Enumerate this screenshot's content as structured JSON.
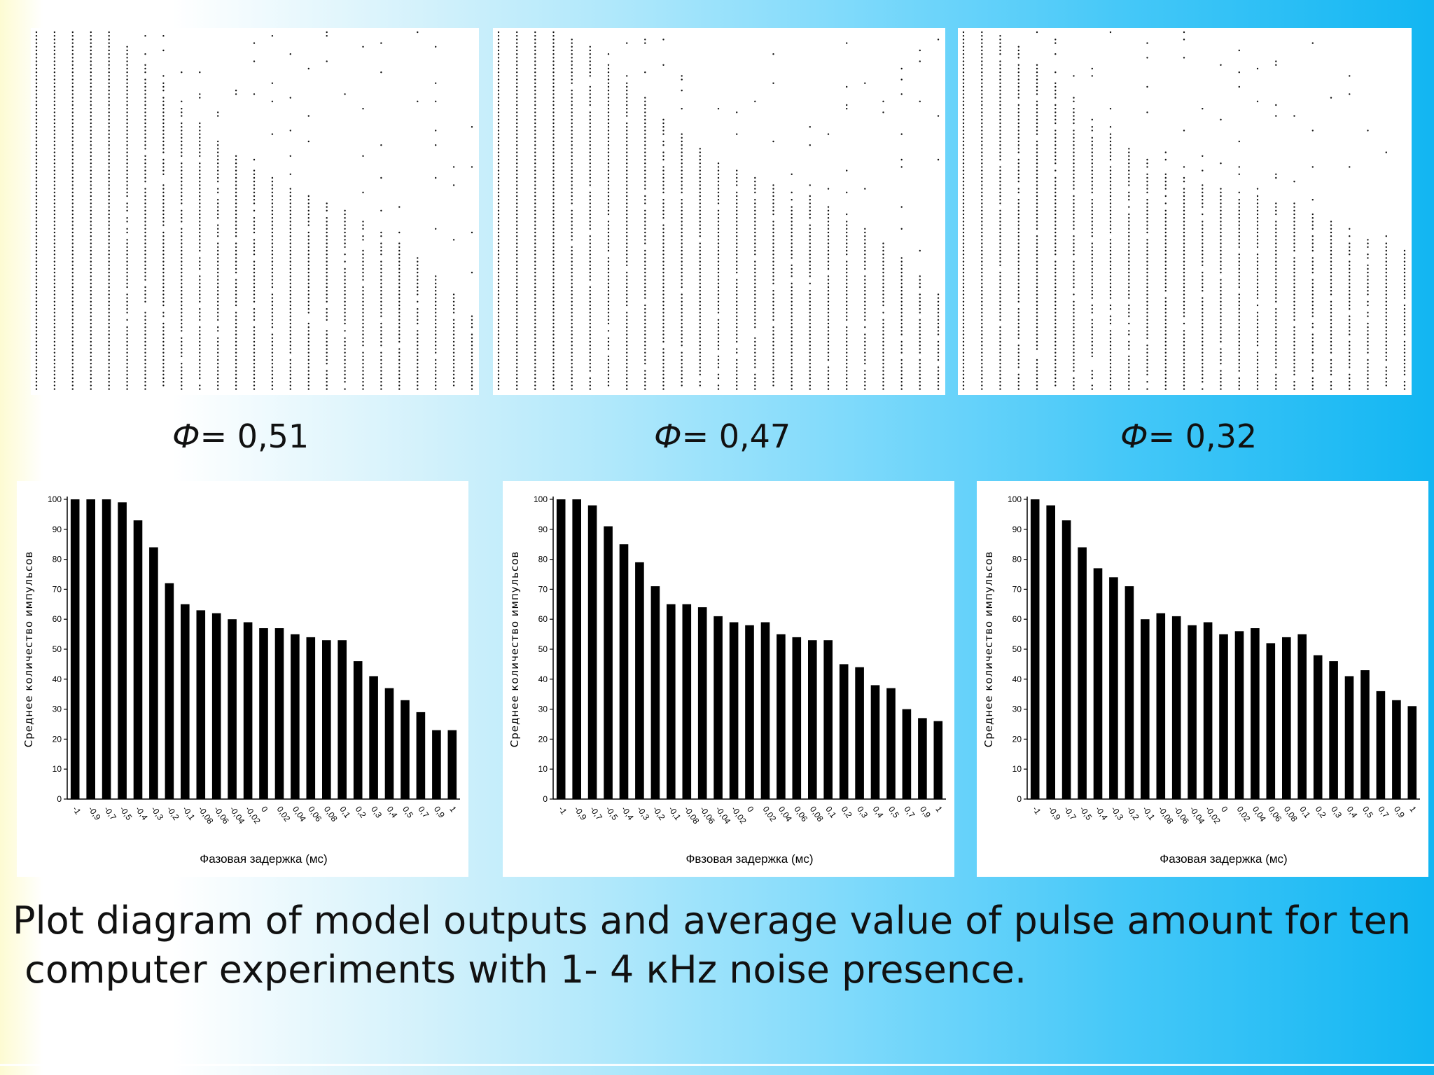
{
  "caption": "Plot diagram of model outputs and average value of pulse amount for ten\n computer experiments with 1- 4 кHz noise presence.",
  "phi_symbol": "Ф",
  "phi_labels": [
    "= 0,51",
    "= 0,47",
    "= 0,32"
  ],
  "chart_data": [
    {
      "type": "scatter",
      "title": "",
      "description": "raster of model output spikes",
      "density": [
        1,
        1,
        1,
        1,
        1,
        0.95,
        0.9,
        0.85,
        0.8,
        0.75,
        0.7,
        0.66,
        0.62,
        0.6,
        0.57,
        0.55,
        0.53,
        0.5,
        0.48,
        0.45,
        0.42,
        0.38,
        0.33,
        0.28,
        0.22
      ]
    },
    {
      "type": "scatter",
      "title": "",
      "description": "raster of model output spikes",
      "density": [
        1,
        1,
        1,
        1,
        0.98,
        0.95,
        0.9,
        0.85,
        0.8,
        0.76,
        0.72,
        0.68,
        0.65,
        0.62,
        0.6,
        0.58,
        0.56,
        0.54,
        0.52,
        0.5,
        0.46,
        0.42,
        0.38,
        0.33,
        0.28
      ]
    },
    {
      "type": "scatter",
      "title": "",
      "description": "raster of model output spikes",
      "density": [
        1,
        1,
        0.98,
        0.95,
        0.9,
        0.85,
        0.8,
        0.76,
        0.72,
        0.68,
        0.65,
        0.62,
        0.6,
        0.58,
        0.57,
        0.56,
        0.55,
        0.54,
        0.52,
        0.5,
        0.48,
        0.46,
        0.44,
        0.42,
        0.4
      ]
    },
    {
      "type": "bar",
      "categories": [
        "-1",
        "-0,9",
        "-0,7",
        "-0,5",
        "-0,4",
        "-0,3",
        "-0,2",
        "-0,1",
        "-0,08",
        "-0,06",
        "-0,04",
        "-0,02",
        "0",
        "0,02",
        "0,04",
        "0,06",
        "0,08",
        "0,1",
        "0,2",
        "0,3",
        "0,4",
        "0,5",
        "0,7",
        "0,9",
        "1"
      ],
      "values": [
        100,
        100,
        100,
        99,
        93,
        84,
        72,
        65,
        63,
        62,
        60,
        59,
        57,
        57,
        55,
        54,
        53,
        53,
        46,
        41,
        37,
        33,
        29,
        23,
        23
      ],
      "xlabel": "Фазовая задержка (мс)",
      "ylabel": "Среднее количество импульсов",
      "ylim": [
        0,
        100
      ],
      "yticks": [
        "0",
        "10",
        "20",
        "30",
        "40",
        "50",
        "60",
        "70",
        "80",
        "90",
        "100"
      ]
    },
    {
      "type": "bar",
      "categories": [
        "-1",
        "-0,9",
        "-0,7",
        "-0,5",
        "-0,4",
        "-0,3",
        "-0,2",
        "-0,1",
        "-0,08",
        "-0,06",
        "-0,04",
        "-0,02",
        "0",
        "0,02",
        "0,04",
        "0,06",
        "0,08",
        "0,1",
        "0,2",
        "0,3",
        "0,4",
        "0,5",
        "0,7",
        "0,9",
        "1"
      ],
      "values": [
        100,
        100,
        98,
        91,
        85,
        79,
        71,
        65,
        65,
        64,
        61,
        59,
        58,
        59,
        55,
        54,
        53,
        53,
        45,
        44,
        38,
        37,
        30,
        27,
        26
      ],
      "xlabel": "Фвзовая задержка (мс)",
      "ylabel": "Среднее количество импульсов",
      "ylim": [
        0,
        100
      ],
      "yticks": [
        "0",
        "10",
        "20",
        "30",
        "40",
        "50",
        "60",
        "70",
        "80",
        "90",
        "100"
      ]
    },
    {
      "type": "bar",
      "categories": [
        "-1",
        "-0,9",
        "-0,7",
        "-0,5",
        "-0,4",
        "-0,3",
        "-0,2",
        "-0,1",
        "-0,08",
        "-0,06",
        "-0,04",
        "-0,02",
        "0",
        "0,02",
        "0,04",
        "0,06",
        "0,08",
        "0,1",
        "0,2",
        "0,3",
        "0,4",
        "0,5",
        "0,7",
        "0,9",
        "1"
      ],
      "values": [
        100,
        98,
        93,
        84,
        77,
        74,
        71,
        60,
        62,
        61,
        58,
        59,
        55,
        56,
        57,
        52,
        54,
        55,
        48,
        46,
        41,
        43,
        36,
        33,
        31
      ],
      "xlabel": "Фазовая задержка (мс)",
      "ylabel": "Среднее количество импульсов",
      "ylim": [
        0,
        100
      ],
      "yticks": [
        "0",
        "10",
        "20",
        "30",
        "40",
        "50",
        "60",
        "70",
        "80",
        "90",
        "100"
      ]
    }
  ]
}
